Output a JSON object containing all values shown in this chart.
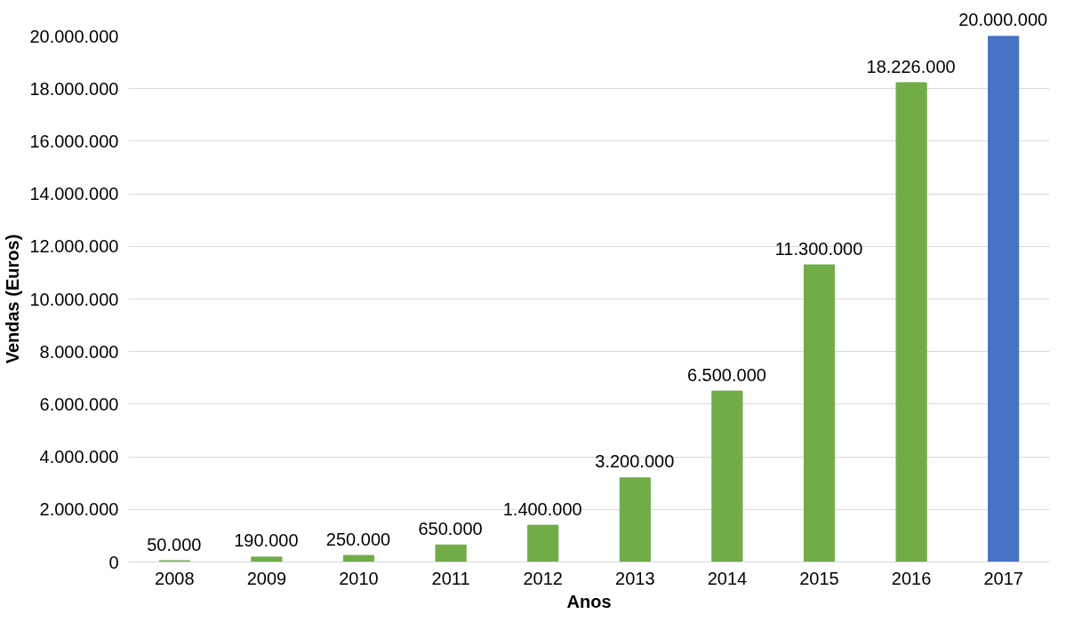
{
  "chart_data": {
    "type": "bar",
    "xlabel": "Anos",
    "ylabel": "Vendas (Euros)",
    "categories": [
      "2008",
      "2009",
      "2010",
      "2011",
      "2012",
      "2013",
      "2014",
      "2015",
      "2016",
      "2017"
    ],
    "values": [
      50000,
      190000,
      250000,
      650000,
      1400000,
      3200000,
      6500000,
      11300000,
      18226000,
      20000000
    ],
    "colors": [
      "#70ad47",
      "#70ad47",
      "#70ad47",
      "#70ad47",
      "#70ad47",
      "#70ad47",
      "#70ad47",
      "#70ad47",
      "#70ad47",
      "#4472c4"
    ],
    "value_labels": [
      "50.000",
      "190.000",
      "250.000",
      "650.000",
      "1.400.000",
      "3.200.000",
      "6.500.000",
      "11.300.000",
      "18.226.000",
      "20.000.000"
    ],
    "ylim": [
      0,
      20000000
    ],
    "yticks": [
      0,
      {
        "value": 2000000,
        "label": "2.000.000"
      },
      {
        "value": 4000000,
        "label": "4.000.000"
      },
      {
        "value": 6000000,
        "label": "6.000.000"
      },
      {
        "value": 8000000,
        "label": "8.000.000"
      },
      {
        "value": 10000000,
        "label": "10.000.000"
      },
      {
        "value": 12000000,
        "label": "12.000.000"
      },
      {
        "value": 14000000,
        "label": "14.000.000"
      },
      {
        "value": 16000000,
        "label": "16.000.000"
      },
      {
        "value": 18000000,
        "label": "18.000.000"
      },
      {
        "value": 20000000,
        "label": "20.000.000"
      }
    ],
    "grid": "y"
  }
}
